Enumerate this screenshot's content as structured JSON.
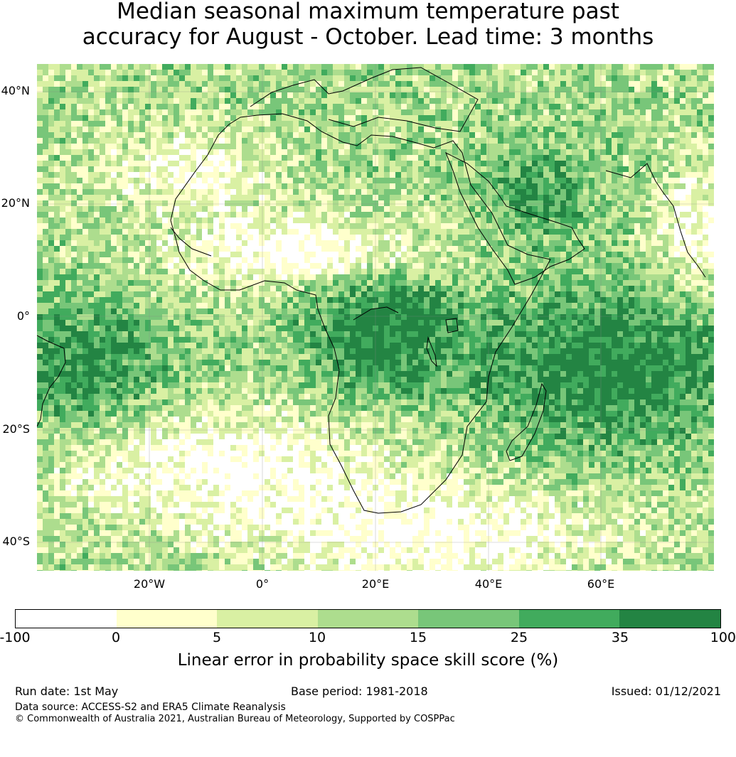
{
  "title": {
    "line1": "Median seasonal maximum temperature past",
    "line2": "accuracy for August - October. Lead time: 3 months"
  },
  "map": {
    "lat_labels": [
      "40°N",
      "20°N",
      "0°",
      "20°S",
      "40°S"
    ],
    "lon_labels": [
      "20°W",
      "0°",
      "20°E",
      "40°E",
      "60°E"
    ]
  },
  "colorbar": {
    "ticks": [
      "-100",
      "0",
      "5",
      "10",
      "15",
      "25",
      "35",
      "100"
    ],
    "colors": [
      "#ffffff",
      "#ffffcc",
      "#d9f0a3",
      "#addd8e",
      "#78c679",
      "#41ab5d",
      "#238443"
    ],
    "label": "Linear error in probability space skill score (%)"
  },
  "footer": {
    "run_date": "Run date: 1st May",
    "base_period": "Base period: 1981-2018",
    "issued": "Issued: 01/12/2021",
    "data_source": "Data source: ACCESS-S2 and ERA5 Climate Reanalysis",
    "copyright": "© Commonwealth of Australia 2021, Australian Bureau of Meteorology, Supported by COSPPac"
  }
}
